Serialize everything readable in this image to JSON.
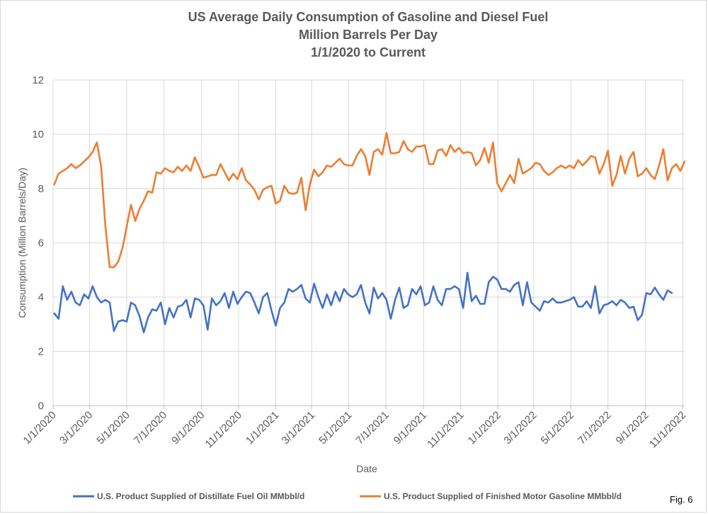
{
  "chart_data": {
    "type": "line",
    "title_lines": [
      "US Average Daily Consumption of Gasoline and Diesel Fuel",
      "Million Barrels Per Day",
      "1/1/2020 to Current"
    ],
    "xlabel": "Date",
    "ylabel": "Consumption (Million Barrels/Day)",
    "ylim": [
      0,
      12
    ],
    "y_ticks": [
      0,
      2,
      4,
      6,
      8,
      10,
      12
    ],
    "x_range": [
      "2020-01-01",
      "2022-11-04"
    ],
    "x_ticks": [
      {
        "date": "2020-01-01",
        "label": "1/1/2020"
      },
      {
        "date": "2020-03-01",
        "label": "3/1/2020"
      },
      {
        "date": "2020-05-01",
        "label": "5/1/2020"
      },
      {
        "date": "2020-07-01",
        "label": "7/1/2020"
      },
      {
        "date": "2020-09-01",
        "label": "9/1/2020"
      },
      {
        "date": "2020-11-01",
        "label": "11/1/2020"
      },
      {
        "date": "2021-01-01",
        "label": "1/1/2021"
      },
      {
        "date": "2021-03-01",
        "label": "3/1/2021"
      },
      {
        "date": "2021-05-01",
        "label": "5/1/2021"
      },
      {
        "date": "2021-07-01",
        "label": "7/1/2021"
      },
      {
        "date": "2021-09-01",
        "label": "9/1/2021"
      },
      {
        "date": "2021-11-01",
        "label": "11/1/2021"
      },
      {
        "date": "2022-01-01",
        "label": "1/1/2022"
      },
      {
        "date": "2022-03-01",
        "label": "3/1/2022"
      },
      {
        "date": "2022-05-01",
        "label": "5/1/2022"
      },
      {
        "date": "2022-07-01",
        "label": "7/1/2022"
      },
      {
        "date": "2022-09-01",
        "label": "9/1/2022"
      },
      {
        "date": "2022-11-01",
        "label": "11/1/2022"
      }
    ],
    "vertical_grid": true,
    "horizontal_grid": true,
    "legend_position": "bottom",
    "series": [
      {
        "name": "U.S. Product Supplied of Distillate Fuel Oil MMbbl/d",
        "color": "#4472c4",
        "start_date": "2020-01-03",
        "interval_days": 7,
        "values": [
          3.4,
          3.2,
          4.4,
          3.9,
          4.2,
          3.8,
          3.7,
          4.1,
          3.95,
          4.4,
          4.0,
          3.8,
          3.9,
          3.8,
          2.75,
          3.1,
          3.15,
          3.1,
          3.8,
          3.7,
          3.3,
          2.7,
          3.25,
          3.55,
          3.5,
          3.8,
          3.0,
          3.6,
          3.25,
          3.65,
          3.7,
          3.9,
          3.25,
          3.95,
          3.9,
          3.7,
          2.8,
          3.95,
          3.7,
          3.85,
          4.15,
          3.6,
          4.2,
          3.75,
          4.0,
          4.2,
          4.15,
          3.8,
          3.4,
          4.0,
          4.15,
          3.5,
          2.95,
          3.6,
          3.8,
          4.3,
          4.2,
          4.3,
          4.45,
          3.95,
          3.8,
          4.5,
          4.0,
          3.6,
          4.1,
          3.7,
          4.2,
          3.85,
          4.3,
          4.1,
          4.0,
          4.1,
          4.45,
          3.8,
          3.4,
          4.35,
          3.95,
          4.15,
          3.9,
          3.2,
          3.9,
          4.35,
          3.6,
          3.7,
          4.3,
          4.1,
          4.4,
          3.7,
          3.8,
          4.4,
          3.9,
          3.7,
          4.3,
          4.3,
          4.4,
          4.3,
          3.6,
          4.9,
          3.85,
          4.05,
          3.75,
          3.75,
          4.55,
          4.75,
          4.65,
          4.3,
          4.3,
          4.2,
          4.45,
          4.55,
          3.7,
          4.55,
          3.8,
          3.65,
          3.5,
          3.85,
          3.8,
          3.95,
          3.8,
          3.8,
          3.85,
          3.9,
          4.0,
          3.65,
          3.65,
          3.85,
          3.6,
          4.4,
          3.4,
          3.7,
          3.75,
          3.85,
          3.7,
          3.9,
          3.8,
          3.6,
          3.65,
          3.15,
          3.35,
          4.15,
          4.1,
          4.35,
          4.1,
          3.9,
          4.25,
          4.15
        ]
      },
      {
        "name": "U.S. Product Supplied of Finished Motor Gasoline MMbbl/d",
        "color": "#ed7d31",
        "start_date": "2020-01-03",
        "interval_days": 7,
        "values": [
          8.15,
          8.55,
          8.65,
          8.75,
          8.9,
          8.75,
          8.85,
          9.0,
          9.15,
          9.35,
          9.7,
          8.8,
          6.6,
          5.1,
          5.1,
          5.3,
          5.8,
          6.6,
          7.4,
          6.8,
          7.25,
          7.55,
          7.9,
          7.85,
          8.6,
          8.55,
          8.75,
          8.65,
          8.6,
          8.8,
          8.65,
          8.85,
          8.65,
          9.15,
          8.8,
          8.4,
          8.45,
          8.5,
          8.5,
          8.9,
          8.6,
          8.3,
          8.55,
          8.35,
          8.75,
          8.3,
          8.15,
          7.95,
          7.6,
          7.95,
          8.05,
          8.1,
          7.45,
          7.55,
          8.1,
          7.85,
          7.8,
          7.85,
          8.4,
          7.2,
          8.15,
          8.7,
          8.45,
          8.6,
          8.85,
          8.8,
          8.95,
          9.1,
          8.9,
          8.85,
          8.85,
          9.2,
          9.45,
          9.2,
          8.5,
          9.35,
          9.45,
          9.25,
          10.05,
          9.3,
          9.3,
          9.35,
          9.75,
          9.45,
          9.35,
          9.55,
          9.55,
          9.6,
          8.9,
          8.9,
          9.4,
          9.45,
          9.2,
          9.6,
          9.35,
          9.5,
          9.3,
          9.35,
          9.3,
          8.85,
          9.05,
          9.5,
          8.95,
          9.7,
          8.2,
          7.9,
          8.2,
          8.5,
          8.2,
          9.1,
          8.55,
          8.65,
          8.75,
          8.95,
          8.9,
          8.65,
          8.5,
          8.6,
          8.75,
          8.85,
          8.75,
          8.85,
          8.75,
          9.05,
          8.85,
          9.0,
          9.2,
          9.15,
          8.55,
          8.9,
          9.4,
          8.1,
          8.5,
          9.2,
          8.55,
          9.1,
          9.35,
          8.45,
          8.55,
          8.75,
          8.5,
          8.35,
          8.85,
          9.45,
          8.3,
          8.75,
          8.9,
          8.65,
          9.0
        ]
      }
    ]
  },
  "figure_label": "Fig. 6"
}
